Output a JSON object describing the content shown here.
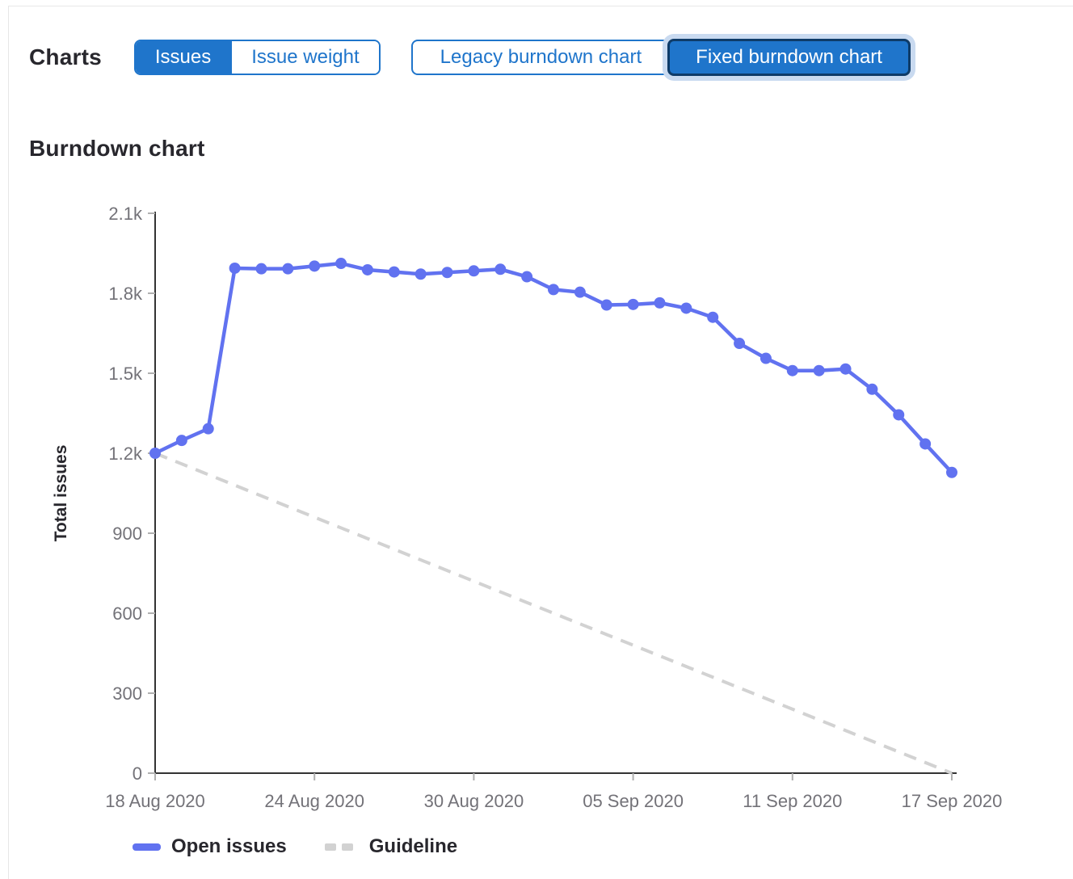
{
  "header": {
    "title": "Charts",
    "groups": [
      {
        "name": "metric-toggle",
        "buttons": [
          {
            "label": "Issues",
            "selected": true
          },
          {
            "label": "Issue weight",
            "selected": false
          }
        ]
      },
      {
        "name": "chart-type-toggle",
        "buttons": [
          {
            "label": "Legacy burndown chart",
            "selected": false
          },
          {
            "label": "Fixed burndown chart",
            "selected": true,
            "focused": true
          }
        ]
      }
    ]
  },
  "section": {
    "title": "Burndown chart"
  },
  "colors": {
    "accent_blue": "#1f75cb",
    "focus_border": "#0e3b68",
    "focus_halo": "#c9daf0",
    "line_blue": "#6172f0",
    "guideline_gray": "#d2d2d2",
    "axis": "#333333",
    "tick": "#b0b0b0",
    "tick_text": "#737278"
  },
  "chart_data": {
    "type": "line",
    "title": "Burndown chart",
    "xlabel": "",
    "ylabel": "Total issues",
    "ylim": [
      0,
      2100
    ],
    "grid": false,
    "legend_position": "bottom",
    "axis_color": "#333333",
    "tick_color": "#b0b0b0",
    "x": [
      "18 Aug 2020",
      "19 Aug 2020",
      "20 Aug 2020",
      "21 Aug 2020",
      "22 Aug 2020",
      "23 Aug 2020",
      "24 Aug 2020",
      "25 Aug 2020",
      "26 Aug 2020",
      "27 Aug 2020",
      "28 Aug 2020",
      "29 Aug 2020",
      "30 Aug 2020",
      "31 Aug 2020",
      "01 Sep 2020",
      "02 Sep 2020",
      "03 Sep 2020",
      "04 Sep 2020",
      "05 Sep 2020",
      "06 Sep 2020",
      "07 Sep 2020",
      "08 Sep 2020",
      "09 Sep 2020",
      "10 Sep 2020",
      "11 Sep 2020",
      "12 Sep 2020",
      "13 Sep 2020",
      "14 Sep 2020",
      "15 Sep 2020",
      "16 Sep 2020",
      "17 Sep 2020"
    ],
    "x_tick_labels": [
      "18 Aug 2020",
      "24 Aug 2020",
      "30 Aug 2020",
      "05 Sep 2020",
      "11 Sep 2020",
      "17 Sep 2020"
    ],
    "y_ticks": [
      0,
      300,
      600,
      900,
      1200,
      1500,
      1800,
      2100
    ],
    "y_tick_labels": [
      "0",
      "300",
      "600",
      "900",
      "1.2k",
      "1.5k",
      "1.8k",
      "2.1k"
    ],
    "series": [
      {
        "name": "Open issues",
        "style": "solid",
        "color": "#6172f0",
        "values": [
          1200,
          1248,
          1292,
          1894,
          1892,
          1892,
          1902,
          1912,
          1888,
          1880,
          1872,
          1878,
          1884,
          1890,
          1862,
          1814,
          1804,
          1756,
          1758,
          1764,
          1744,
          1710,
          1612,
          1556,
          1510,
          1510,
          1516,
          1440,
          1344,
          1235,
          1128
        ]
      },
      {
        "name": "Guideline",
        "style": "dashed",
        "color": "#d2d2d2",
        "points": [
          {
            "x": "18 Aug 2020",
            "y": 1200
          },
          {
            "x": "17 Sep 2020",
            "y": 0
          }
        ]
      }
    ]
  },
  "legend": {
    "items": [
      {
        "label": "Open issues",
        "color": "#6172f0",
        "style": "solid"
      },
      {
        "label": "Guideline",
        "color": "#d2d2d2",
        "style": "dashed"
      }
    ]
  }
}
